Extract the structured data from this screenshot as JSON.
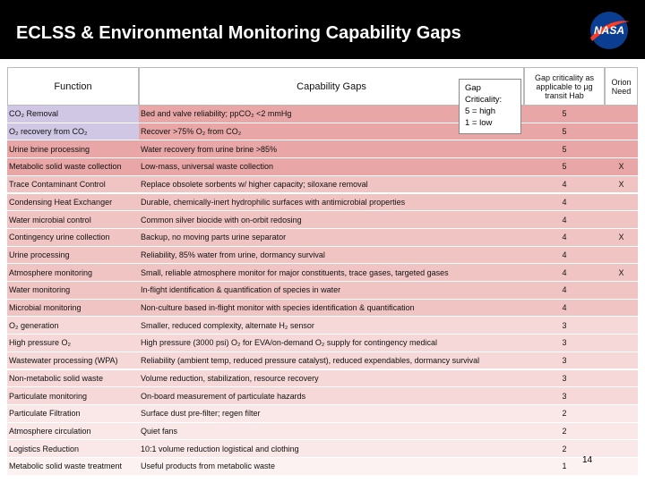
{
  "header": {
    "title": "ECLSS & Environmental Monitoring Capability Gaps",
    "logo": "NASA"
  },
  "table": {
    "columns": [
      "Function",
      "Capability Gaps",
      "Gap criticality as applicable to µg transit Hab",
      "Orion Need"
    ],
    "rows": [
      [
        "CO₂ Removal",
        "Bed and valve reliability; ppCO₂ <2 mmHg",
        5
      ],
      [
        "O₂ recovery from CO₂",
        "Recover >75% O₂ from CO₂",
        5
      ],
      [
        "Urine brine processing",
        "Water recovery from urine brine >85%",
        5
      ],
      [
        "Metabolic solid waste collection",
        "Low-mass, universal waste collection",
        5,
        "X"
      ],
      [
        "Trace Contaminant Control",
        "Replace obsolete sorbents w/ higher capacity; siloxane removal",
        4,
        "X"
      ],
      [
        "Condensing Heat Exchanger",
        "Durable, chemically-inert hydrophilic surfaces with antimicrobial properties",
        4
      ],
      [
        "Water microbial control",
        "Common silver biocide with on-orbit redosing",
        4
      ],
      [
        "Contingency urine collection",
        "Backup, no moving parts urine separator",
        4,
        "X"
      ],
      [
        "Urine processing",
        "Reliability, 85% water from urine, dormancy survival",
        4
      ],
      [
        "Atmosphere monitoring",
        "Small, reliable atmosphere monitor for major constituents, trace gases, targeted gases",
        4,
        "X"
      ],
      [
        "Water monitoring",
        "In-flight identification & quantification of species in water",
        4
      ],
      [
        "Microbial monitoring",
        "Non-culture based in-flight monitor with species identification & quantification",
        4
      ],
      [
        "O₂ generation",
        "Smaller, reduced complexity, alternate H₂ sensor",
        3
      ],
      [
        "High pressure O₂",
        "High pressure (3000 psi) O₂ for EVA/on-demand O₂ supply for contingency medical",
        3
      ],
      [
        "Wastewater processing (WPA)",
        "Reliability (ambient temp, reduced pressure catalyst), reduced expendables, dormancy survival",
        3
      ],
      [
        "Non-metabolic solid waste",
        "Volume reduction, stabilization, resource recovery",
        3
      ],
      [
        "Particulate monitoring",
        "On-board measurement of particulate hazards",
        3
      ],
      [
        "Particulate Filtration",
        "Surface dust pre-filter; regen filter",
        2
      ],
      [
        "Atmosphere circulation",
        "Quiet fans",
        2
      ],
      [
        "Logistics Reduction",
        "10:1 volume reduction logistical and clothing",
        2
      ],
      [
        "Metabolic solid waste treatment",
        "Useful products from metabolic waste",
        1
      ]
    ]
  },
  "legend": {
    "title": "Gap Criticality:",
    "items": [
      "5 = high",
      "1 = low"
    ]
  },
  "page_number": "14"
}
